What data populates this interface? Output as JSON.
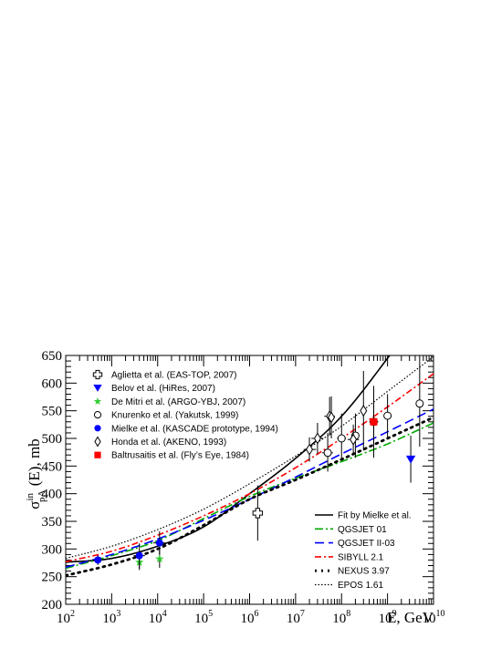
{
  "chart_data": {
    "type": "scatter",
    "x_scale": "log",
    "xlim": [
      100,
      10000000000
    ],
    "ylim": [
      200,
      650
    ],
    "grid": false,
    "legend_placement": [
      "top-left",
      "bottom-right"
    ],
    "xlabel": "E, GeV",
    "ylabel": {
      "base": "σ",
      "sup": "in",
      "sub": "pA",
      "rest": " (E), mb"
    },
    "x_tick_labels": [
      {
        "base": "10",
        "exp": "2"
      },
      {
        "base": "10",
        "exp": "3"
      },
      {
        "base": "10",
        "exp": "4"
      },
      {
        "base": "10",
        "exp": "5"
      },
      {
        "base": "10",
        "exp": "6"
      },
      {
        "base": "10",
        "exp": "7"
      },
      {
        "base": "10",
        "exp": "8"
      },
      {
        "base": "10",
        "exp": "9"
      },
      {
        "base": "10",
        "exp": "10"
      }
    ],
    "y_ticks": [
      "200",
      "250",
      "300",
      "350",
      "400",
      "450",
      "500",
      "550",
      "600",
      "650"
    ],
    "data_series": [
      {
        "name": "Aglietta et al. (EAS-TOP, 2007)",
        "marker": "open-cross",
        "color": "#000000",
        "points": [
          {
            "x": 1500000,
            "y": 365,
            "ylo": 315,
            "yhi": 415,
            "xlo": 1200000,
            "xhi": 1900000
          }
        ]
      },
      {
        "name": "Belov et al. (HiRes, 2007)",
        "marker": "triangle-down",
        "color": "#0000ff",
        "points": [
          {
            "x": 3200000000,
            "y": 462,
            "ylo": 420,
            "yhi": 505
          }
        ]
      },
      {
        "name": "De Mitri et al. (ARGO-YBJ, 2007)",
        "marker": "star",
        "color": "#33cc33",
        "points": [
          {
            "x": 4000,
            "y": 276,
            "ylo": 262,
            "yhi": 290
          },
          {
            "x": 11000,
            "y": 282,
            "ylo": 266,
            "yhi": 298
          }
        ]
      },
      {
        "name": "Knurenko et al. (Yakutsk, 1999)",
        "marker": "open-circle",
        "color": "#000000",
        "points": [
          {
            "x": 50000000,
            "y": 474,
            "ylo": 440,
            "yhi": 510,
            "xlo": 38000000,
            "xhi": 65000000
          },
          {
            "x": 100000000,
            "y": 500,
            "ylo": 460,
            "yhi": 545,
            "xlo": 80000000,
            "xhi": 125000000
          },
          {
            "x": 200000000,
            "y": 505,
            "ylo": 465,
            "yhi": 545
          },
          {
            "x": 500000000,
            "y": 530,
            "ylo": 490,
            "yhi": 570,
            "xlo": 400000000,
            "xhi": 630000000
          },
          {
            "x": 1000000000,
            "y": 541,
            "ylo": 500,
            "yhi": 580
          },
          {
            "x": 5000000000,
            "y": 563,
            "ylo": 485,
            "yhi": 640
          }
        ]
      },
      {
        "name": "Mielke et al. (KASCADE prototype, 1994)",
        "marker": "filled-circle",
        "color": "#0000ff",
        "points": [
          {
            "x": 500,
            "y": 280,
            "ylo": 271,
            "yhi": 289,
            "xlo": 380,
            "xhi": 660
          },
          {
            "x": 4000,
            "y": 288,
            "ylo": 265,
            "yhi": 310,
            "xlo": 3000,
            "xhi": 5300
          },
          {
            "x": 11000,
            "y": 311,
            "ylo": 290,
            "yhi": 332,
            "xlo": 8000,
            "xhi": 15000
          }
        ]
      },
      {
        "name": "Honda et al. (AKENO, 1993)",
        "marker": "open-diamond",
        "color": "#000000",
        "points": [
          {
            "x": 20000000,
            "y": 480,
            "ylo": 458,
            "yhi": 502,
            "xlo": 15000000,
            "xhi": 28000000
          },
          {
            "x": 30000000,
            "y": 500,
            "ylo": 472,
            "yhi": 528,
            "xlo": 22000000,
            "xhi": 40000000
          },
          {
            "x": 55000000,
            "y": 540,
            "ylo": 505,
            "yhi": 575,
            "xlo": 42000000,
            "xhi": 72000000
          },
          {
            "x": 60000000,
            "y": 538,
            "ylo": 500,
            "yhi": 576
          },
          {
            "x": 180000000,
            "y": 498,
            "ylo": 472,
            "yhi": 525,
            "xlo": 135000000,
            "xhi": 240000000
          },
          {
            "x": 300000000,
            "y": 550,
            "ylo": 478,
            "yhi": 622
          }
        ]
      },
      {
        "name": "Baltrusaitis et al. (Fly’s Eye, 1984)",
        "marker": "filled-square",
        "color": "#ff0000",
        "points": [
          {
            "x": 500000000,
            "y": 530,
            "ylo": 465,
            "yhi": 595
          }
        ]
      }
    ],
    "line_series": [
      {
        "name": "Fit by Mielke et al.",
        "color": "#000000",
        "dash": "",
        "x": [
          100,
          1000,
          10000,
          100000,
          1000000,
          10000000,
          100000000,
          1000000000,
          10000000000
        ],
        "y": [
          276,
          283,
          305,
          340,
          400,
          464,
          540,
          645,
          760
        ]
      },
      {
        "name": "QGSJET 01",
        "color": "#00aa00",
        "dash": "9 3 2 3",
        "x": [
          100,
          1000,
          10000,
          100000,
          1000000,
          10000000,
          100000000,
          1000000000,
          10000000000
        ],
        "y": [
          265,
          288,
          315,
          355,
          395,
          428,
          458,
          490,
          528
        ]
      },
      {
        "name": "QGSJET II-03",
        "color": "#0000ff",
        "dash": "10 5",
        "x": [
          100,
          1000,
          10000,
          100000,
          1000000,
          10000000,
          100000000,
          1000000000,
          10000000000
        ],
        "y": [
          267,
          290,
          318,
          352,
          390,
          430,
          472,
          512,
          553
        ]
      },
      {
        "name": "SIBYLL 2.1",
        "color": "#ff0000",
        "dash": "7 3 2 3",
        "x": [
          100,
          1000,
          10000,
          100000,
          1000000,
          10000000,
          100000000,
          1000000000,
          10000000000
        ],
        "y": [
          277,
          296,
          325,
          360,
          400,
          447,
          500,
          557,
          617
        ]
      },
      {
        "name": "NEXUS 3.97",
        "color": "#000000",
        "dash": "2 5",
        "width": 2.8,
        "x": [
          100,
          1000,
          10000,
          100000,
          1000000,
          10000000,
          100000000,
          1000000000,
          10000000000
        ],
        "y": [
          252,
          272,
          300,
          343,
          390,
          425,
          462,
          500,
          538
        ]
      },
      {
        "name": "EPOS 1.61",
        "color": "#000000",
        "dash": "1.5 2",
        "width": 1.2,
        "x": [
          100,
          1000,
          10000,
          100000,
          1000000,
          10000000,
          100000000,
          1000000000,
          10000000000
        ],
        "y": [
          283,
          305,
          335,
          372,
          418,
          468,
          522,
          585,
          648
        ]
      }
    ]
  }
}
